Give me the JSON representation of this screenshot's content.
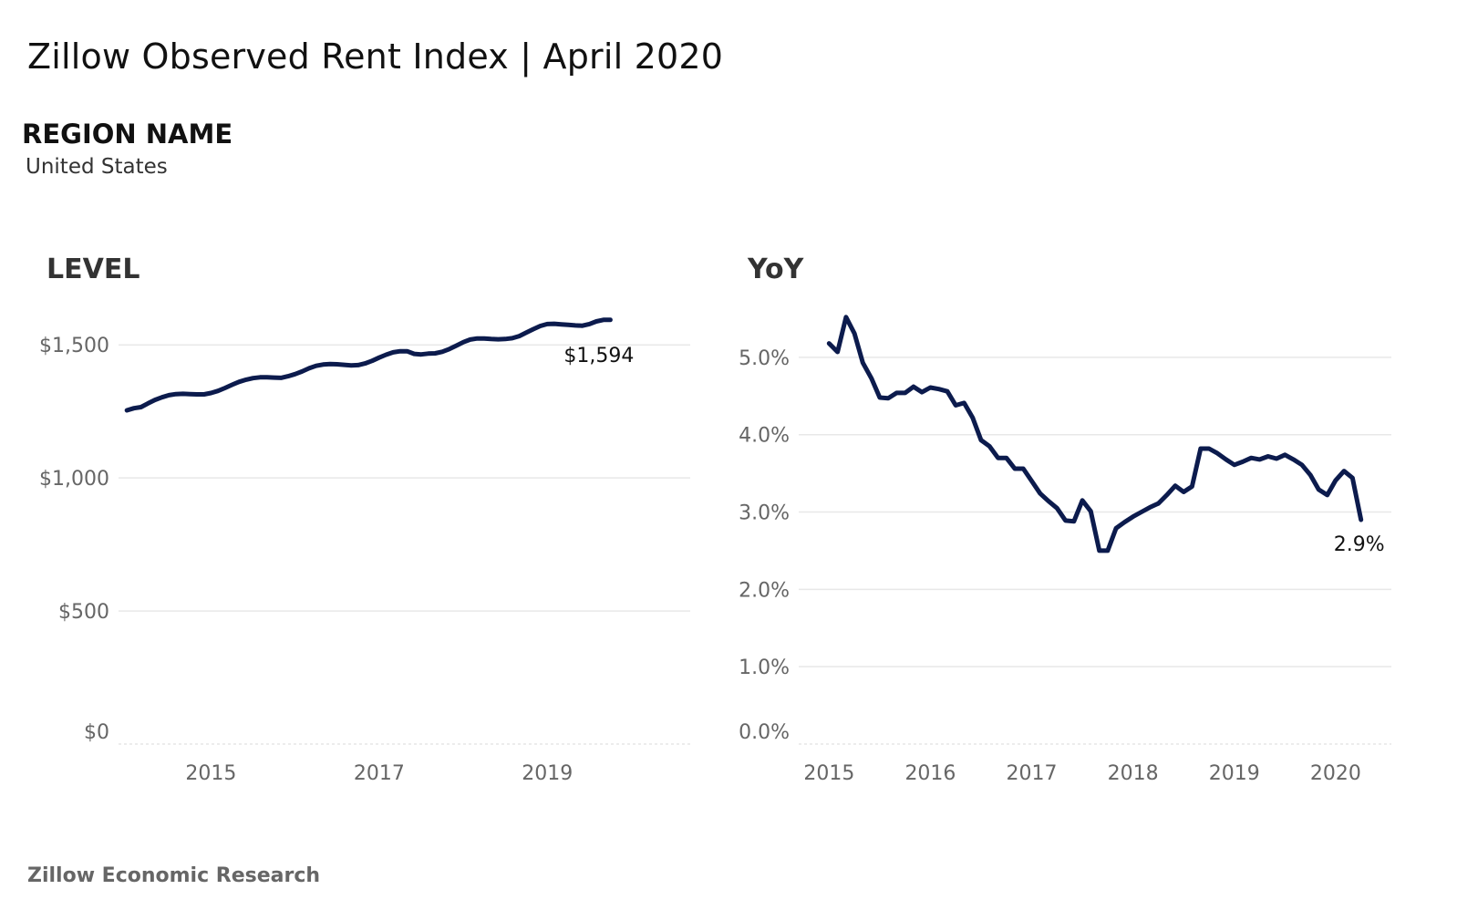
{
  "header": {
    "title": "Zillow Observed Rent Index | April 2020",
    "region_label": "REGION NAME",
    "region_value": "United States"
  },
  "footer": {
    "source": "Zillow Economic Research"
  },
  "colors": {
    "line": "#0c1b4d",
    "grid": "#e8e8e8",
    "tick": "#666666"
  },
  "chart_data": [
    {
      "type": "line",
      "title": "LEVEL",
      "x_unit": "year (decimal)",
      "ylim": [
        0,
        1600
      ],
      "xlim": [
        2013.9,
        2020.7
      ],
      "yticks": [
        {
          "value": 0,
          "label": "$0"
        },
        {
          "value": 500,
          "label": "$500"
        },
        {
          "value": 1000,
          "label": "$1,000"
        },
        {
          "value": 1500,
          "label": "$1,500"
        }
      ],
      "xticks": [
        {
          "value": 2015,
          "label": "2015"
        },
        {
          "value": 2017,
          "label": "2017"
        },
        {
          "value": 2019,
          "label": "2019"
        }
      ],
      "grid": true,
      "end_label": "$1,594",
      "series": [
        {
          "points": [
            [
              2014.0,
              1254
            ],
            [
              2014.083,
              1262
            ],
            [
              2014.167,
              1266
            ],
            [
              2014.25,
              1280
            ],
            [
              2014.333,
              1293
            ],
            [
              2014.417,
              1303
            ],
            [
              2014.5,
              1311
            ],
            [
              2014.583,
              1315
            ],
            [
              2014.667,
              1316
            ],
            [
              2014.75,
              1315
            ],
            [
              2014.833,
              1314
            ],
            [
              2014.917,
              1314
            ],
            [
              2015.0,
              1319
            ],
            [
              2015.083,
              1327
            ],
            [
              2015.167,
              1338
            ],
            [
              2015.25,
              1350
            ],
            [
              2015.333,
              1361
            ],
            [
              2015.417,
              1369
            ],
            [
              2015.5,
              1375
            ],
            [
              2015.583,
              1378
            ],
            [
              2015.667,
              1378
            ],
            [
              2015.75,
              1377
            ],
            [
              2015.833,
              1376
            ],
            [
              2015.917,
              1382
            ],
            [
              2016.0,
              1390
            ],
            [
              2016.083,
              1400
            ],
            [
              2016.167,
              1412
            ],
            [
              2016.25,
              1421
            ],
            [
              2016.333,
              1426
            ],
            [
              2016.417,
              1428
            ],
            [
              2016.5,
              1427
            ],
            [
              2016.583,
              1425
            ],
            [
              2016.667,
              1423
            ],
            [
              2016.75,
              1424
            ],
            [
              2016.833,
              1430
            ],
            [
              2016.917,
              1440
            ],
            [
              2017.0,
              1452
            ],
            [
              2017.083,
              1463
            ],
            [
              2017.167,
              1472
            ],
            [
              2017.25,
              1476
            ],
            [
              2017.333,
              1476
            ],
            [
              2017.417,
              1466
            ],
            [
              2017.5,
              1464
            ],
            [
              2017.583,
              1467
            ],
            [
              2017.667,
              1468
            ],
            [
              2017.75,
              1474
            ],
            [
              2017.833,
              1484
            ],
            [
              2017.917,
              1497
            ],
            [
              2018.0,
              1510
            ],
            [
              2018.083,
              1520
            ],
            [
              2018.167,
              1524
            ],
            [
              2018.25,
              1524
            ],
            [
              2018.333,
              1522
            ],
            [
              2018.417,
              1521
            ],
            [
              2018.5,
              1522
            ],
            [
              2018.583,
              1525
            ],
            [
              2018.667,
              1533
            ],
            [
              2018.75,
              1546
            ],
            [
              2018.833,
              1559
            ],
            [
              2018.917,
              1571
            ],
            [
              2019.0,
              1578
            ],
            [
              2019.083,
              1579
            ],
            [
              2019.167,
              1577
            ],
            [
              2019.25,
              1575
            ],
            [
              2019.333,
              1573
            ],
            [
              2019.417,
              1572
            ],
            [
              2019.5,
              1578
            ],
            [
              2019.583,
              1588
            ],
            [
              2019.667,
              1594
            ],
            [
              2019.75,
              1594
            ]
          ]
        }
      ]
    },
    {
      "type": "line",
      "title": "YoY",
      "x_unit": "year (decimal)",
      "ylim": [
        0.0,
        5.6
      ],
      "xlim": [
        2014.7,
        2020.55
      ],
      "yticks": [
        {
          "value": 0,
          "label": "0.0%"
        },
        {
          "value": 1,
          "label": "1.0%"
        },
        {
          "value": 2,
          "label": "2.0%"
        },
        {
          "value": 3,
          "label": "3.0%"
        },
        {
          "value": 4,
          "label": "4.0%"
        },
        {
          "value": 5,
          "label": "5.0%"
        }
      ],
      "xticks": [
        {
          "value": 2015,
          "label": "2015"
        },
        {
          "value": 2016,
          "label": "2016"
        },
        {
          "value": 2017,
          "label": "2017"
        },
        {
          "value": 2018,
          "label": "2018"
        },
        {
          "value": 2019,
          "label": "2019"
        },
        {
          "value": 2020,
          "label": "2020"
        }
      ],
      "grid": true,
      "end_label": "2.9%",
      "series": [
        {
          "points": [
            [
              2015.0,
              5.18
            ],
            [
              2015.083,
              5.07
            ],
            [
              2015.167,
              5.52
            ],
            [
              2015.25,
              5.31
            ],
            [
              2015.333,
              4.93
            ],
            [
              2015.417,
              4.73
            ],
            [
              2015.5,
              4.48
            ],
            [
              2015.583,
              4.47
            ],
            [
              2015.667,
              4.54
            ],
            [
              2015.75,
              4.54
            ],
            [
              2015.833,
              4.62
            ],
            [
              2015.917,
              4.55
            ],
            [
              2016.0,
              4.61
            ],
            [
              2016.083,
              4.59
            ],
            [
              2016.167,
              4.56
            ],
            [
              2016.25,
              4.38
            ],
            [
              2016.333,
              4.41
            ],
            [
              2016.417,
              4.22
            ],
            [
              2016.5,
              3.93
            ],
            [
              2016.583,
              3.85
            ],
            [
              2016.667,
              3.7
            ],
            [
              2016.75,
              3.7
            ],
            [
              2016.833,
              3.56
            ],
            [
              2016.917,
              3.56
            ],
            [
              2017.0,
              3.4
            ],
            [
              2017.083,
              3.24
            ],
            [
              2017.167,
              3.14
            ],
            [
              2017.25,
              3.05
            ],
            [
              2017.333,
              2.89
            ],
            [
              2017.417,
              2.88
            ],
            [
              2017.5,
              3.15
            ],
            [
              2017.583,
              3.01
            ],
            [
              2017.667,
              2.5
            ],
            [
              2017.75,
              2.5
            ],
            [
              2017.833,
              2.79
            ],
            [
              2017.917,
              2.87
            ],
            [
              2018.0,
              2.94
            ],
            [
              2018.083,
              3.0
            ],
            [
              2018.167,
              3.06
            ],
            [
              2018.25,
              3.11
            ],
            [
              2018.333,
              3.22
            ],
            [
              2018.417,
              3.34
            ],
            [
              2018.5,
              3.26
            ],
            [
              2018.583,
              3.33
            ],
            [
              2018.667,
              3.82
            ],
            [
              2018.75,
              3.82
            ],
            [
              2018.833,
              3.76
            ],
            [
              2018.917,
              3.68
            ],
            [
              2019.0,
              3.61
            ],
            [
              2019.083,
              3.65
            ],
            [
              2019.167,
              3.7
            ],
            [
              2019.25,
              3.68
            ],
            [
              2019.333,
              3.72
            ],
            [
              2019.417,
              3.69
            ],
            [
              2019.5,
              3.74
            ],
            [
              2019.583,
              3.68
            ],
            [
              2019.667,
              3.61
            ],
            [
              2019.75,
              3.48
            ],
            [
              2019.833,
              3.29
            ],
            [
              2019.917,
              3.22
            ],
            [
              2020.0,
              3.41
            ],
            [
              2020.083,
              3.53
            ],
            [
              2020.167,
              3.44
            ],
            [
              2020.25,
              2.9
            ]
          ]
        }
      ]
    }
  ]
}
